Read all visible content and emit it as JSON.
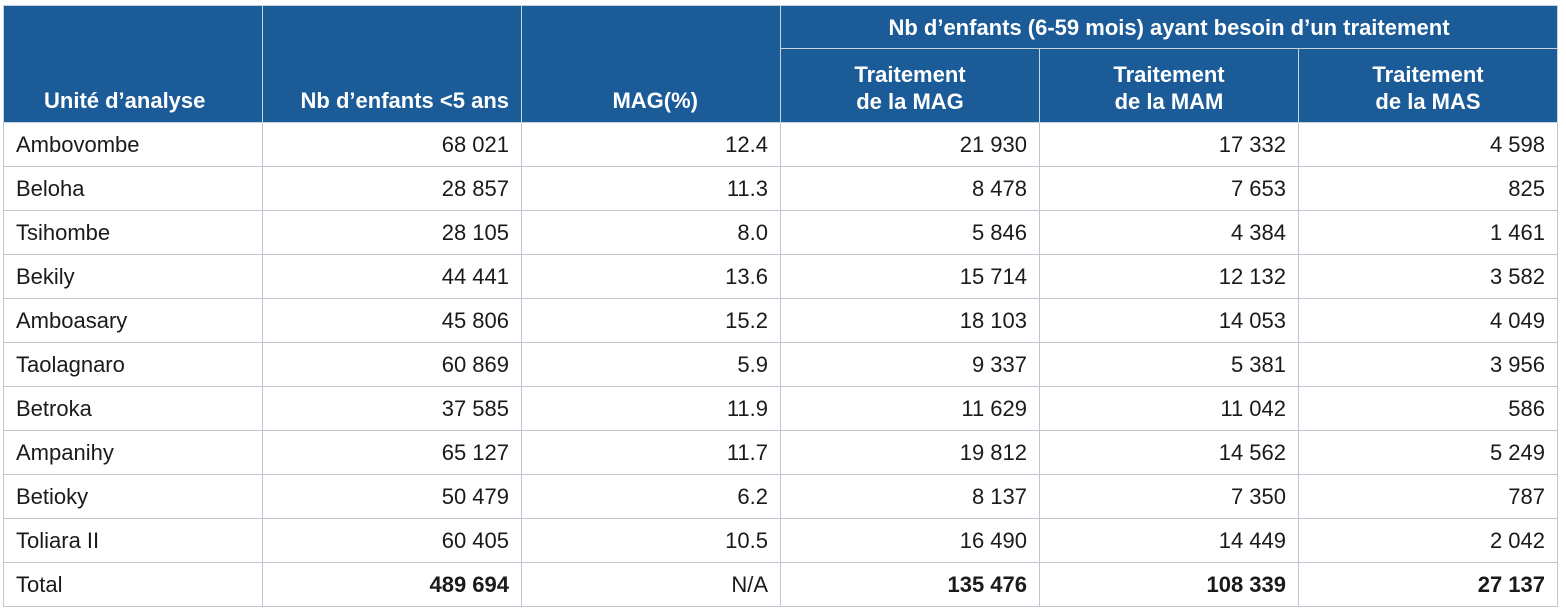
{
  "header": {
    "col_unit": "Unité d’analyse",
    "col_children": "Nb d’enfants <5 ans",
    "col_mag": "MAG(%)",
    "group_title": "Nb d’enfants (6-59 mois) ayant besoin d’un traitement",
    "sub_mag_line1": "Traitement",
    "sub_mag_line2": "de la MAG",
    "sub_mam_line1": "Traitement",
    "sub_mam_line2": "de la MAM",
    "sub_mas_line1": "Traitement",
    "sub_mas_line2": "de la MAS"
  },
  "rows": [
    {
      "unit": "Ambovombe",
      "children": "68 021",
      "mag": "12.4",
      "t_mag": "21 930",
      "t_mam": "17 332",
      "t_mas": "4 598"
    },
    {
      "unit": "Beloha",
      "children": "28 857",
      "mag": "11.3",
      "t_mag": "8 478",
      "t_mam": "7 653",
      "t_mas": "825"
    },
    {
      "unit": "Tsihombe",
      "children": "28 105",
      "mag": "8.0",
      "t_mag": "5 846",
      "t_mam": "4 384",
      "t_mas": "1 461"
    },
    {
      "unit": "Bekily",
      "children": "44 441",
      "mag": "13.6",
      "t_mag": "15 714",
      "t_mam": "12 132",
      "t_mas": "3 582"
    },
    {
      "unit": "Amboasary",
      "children": "45 806",
      "mag": "15.2",
      "t_mag": "18 103",
      "t_mam": "14 053",
      "t_mas": "4 049"
    },
    {
      "unit": "Taolagnaro",
      "children": "60 869",
      "mag": "5.9",
      "t_mag": "9 337",
      "t_mam": "5 381",
      "t_mas": "3 956"
    },
    {
      "unit": "Betroka",
      "children": "37 585",
      "mag": "11.9",
      "t_mag": "11 629",
      "t_mam": "11 042",
      "t_mas": "586"
    },
    {
      "unit": "Ampanihy",
      "children": "65 127",
      "mag": "11.7",
      "t_mag": "19 812",
      "t_mam": "14 562",
      "t_mas": "5 249"
    },
    {
      "unit": "Betioky",
      "children": "50 479",
      "mag": "6.2",
      "t_mag": "8 137",
      "t_mam": "7 350",
      "t_mas": "787"
    },
    {
      "unit": "Toliara II",
      "children": "60 405",
      "mag": "10.5",
      "t_mag": "16 490",
      "t_mam": "14 449",
      "t_mas": "2 042"
    }
  ],
  "total": {
    "unit": "Total",
    "children": "489 694",
    "mag": "N/A",
    "t_mag": "135 476",
    "t_mam": "108 339",
    "t_mas": "27 137"
  },
  "colors": {
    "header_bg": "#1b5b98",
    "header_text": "#ffffff",
    "border": "#bfc6cf"
  }
}
